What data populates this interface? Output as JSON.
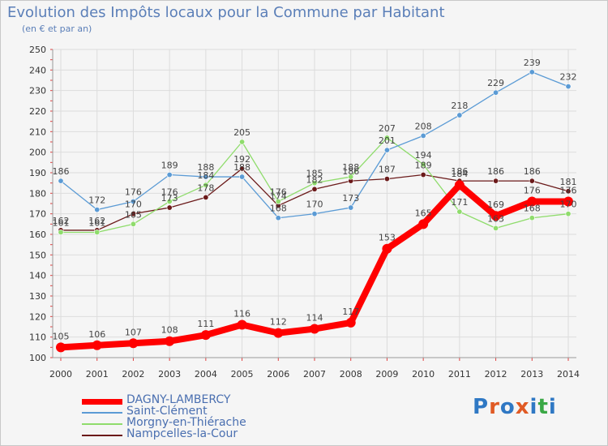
{
  "title": "Evolution des Impôts locaux pour la Commune par Habitant",
  "subtitle": "(en € et par an)",
  "logo": {
    "text": "Proxiti",
    "colors": [
      "#2f78c4",
      "#e05a24",
      "#2f78c4",
      "#e05a24",
      "#2f78c4",
      "#3aa845",
      "#2f78c4"
    ]
  },
  "chart_data": {
    "type": "line",
    "title": "Evolution des Impôts locaux pour la Commune par Habitant",
    "xlabel": "",
    "ylabel": "(en € et par an)",
    "x": [
      "2000",
      "2001",
      "2002",
      "2003",
      "2004",
      "2005",
      "2006",
      "2007",
      "2008",
      "2009",
      "2010",
      "2011",
      "2012",
      "2013",
      "2014"
    ],
    "ylim": [
      100,
      250
    ],
    "yticks": [
      100,
      110,
      120,
      130,
      140,
      150,
      160,
      170,
      180,
      190,
      200,
      210,
      220,
      230,
      240,
      250
    ],
    "grid": true,
    "legend": "bottom-left",
    "series": [
      {
        "name": "DAGNY-LAMBERCY",
        "color": "#ff0000",
        "values": [
          105,
          106,
          107,
          108,
          111,
          116,
          112,
          114,
          117,
          153,
          165,
          184,
          169,
          176,
          176
        ],
        "labels": [
          "105",
          "106",
          "107",
          "108",
          "111",
          "116",
          "112",
          "114",
          "117",
          "153",
          "165",
          "184",
          "169",
          "176",
          "176"
        ]
      },
      {
        "name": "Saint-Clément",
        "color": "#5b9bd5",
        "values": [
          186,
          172,
          176,
          189,
          188,
          188,
          168,
          170,
          173,
          201,
          208,
          218,
          229,
          239,
          232
        ],
        "labels": [
          "186",
          "172",
          "176",
          "189",
          "188",
          "188",
          "168",
          "170",
          "173",
          "201",
          "208",
          "218",
          "229",
          "239",
          "232"
        ]
      },
      {
        "name": "Morgny-en-Thiérache",
        "color": "#8fdc6c",
        "values": [
          161,
          161,
          165,
          176,
          184,
          205,
          176,
          185,
          188,
          207,
          194,
          171,
          163,
          168,
          170
        ],
        "labels": [
          "161",
          "161",
          "165",
          "176",
          "184",
          "205",
          "176",
          "185",
          "188",
          "207",
          "194",
          "171",
          "163",
          "168",
          "170"
        ]
      },
      {
        "name": "Nampcelles-la-Cour",
        "color": "#6b1a1a",
        "values": [
          162,
          162,
          170,
          173,
          178,
          192,
          174,
          182,
          186,
          187,
          189,
          186,
          186,
          186,
          181
        ],
        "labels": [
          "162",
          "162",
          "170",
          "173",
          "178",
          "192",
          "174",
          "182",
          "186",
          "187",
          "189",
          "186",
          "186",
          "186",
          "181"
        ]
      }
    ]
  }
}
